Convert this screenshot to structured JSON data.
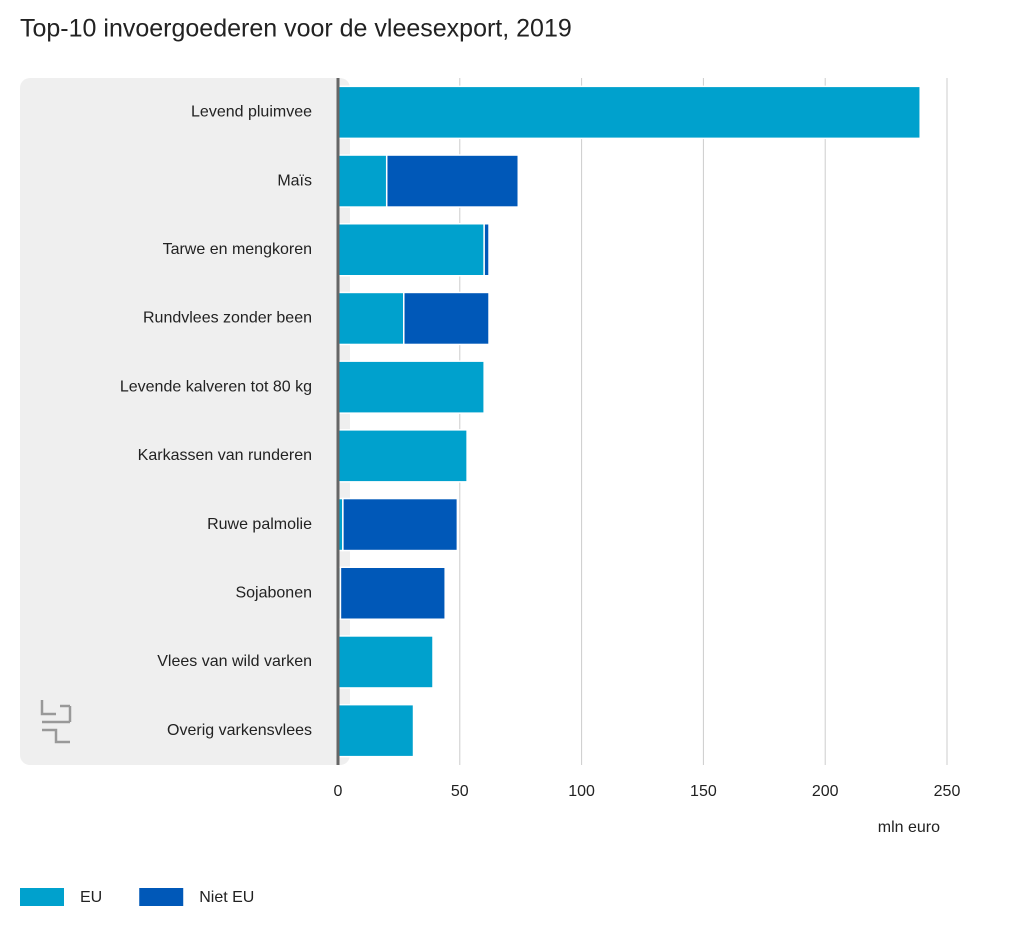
{
  "chart_data": {
    "type": "stacked_barh",
    "title": "Top-10 invoergoederen voor de vleesexport, 2019",
    "xlabel": "mln euro",
    "categories": [
      "Levend pluimvee",
      "Maïs",
      "Tarwe en mengkoren",
      "Rundvlees zonder been",
      "Levende kalveren tot 80 kg",
      "Karkassen van runderen",
      "Ruwe palmolie",
      "Sojabonen",
      "Vlees van wild varken",
      "Overig varkensvlees"
    ],
    "series": [
      {
        "name": "EU",
        "color": "#00a1cd",
        "values": [
          239,
          20,
          60,
          27,
          60,
          53,
          2,
          1,
          39,
          31
        ]
      },
      {
        "name": "Niet EU",
        "color": "#0058b8",
        "values": [
          0,
          54,
          2,
          35,
          0,
          0,
          47,
          43,
          0,
          0
        ]
      }
    ],
    "xlim": [
      0,
      250
    ],
    "xticks": [
      0,
      50,
      100,
      150,
      200,
      250
    ],
    "grid": true
  }
}
